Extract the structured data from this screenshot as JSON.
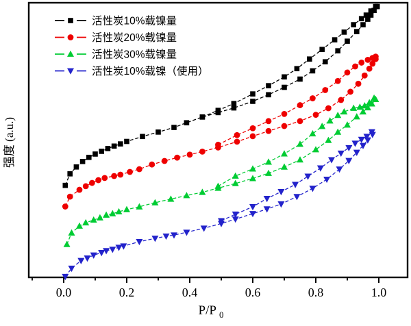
{
  "figure": {
    "background": "#ffffff",
    "frame_color": "#000000"
  },
  "axes": {
    "x": {
      "label_base": "P/P",
      "label_sub": "0",
      "major_ticks": [
        {
          "value": 0.0,
          "label": "0.0"
        },
        {
          "value": 0.2,
          "label": "0.2"
        },
        {
          "value": 0.4,
          "label": "0.4"
        },
        {
          "value": 0.6,
          "label": "0.6"
        },
        {
          "value": 0.8,
          "label": "0.8"
        },
        {
          "value": 1.0,
          "label": "1.0"
        }
      ],
      "minor_ticks": [
        -0.1,
        0.1,
        0.3,
        0.5,
        0.7,
        0.9
      ]
    },
    "y": {
      "label": "强度 (a.u.)",
      "tick_labels": []
    }
  },
  "legend": {
    "position": "top-left-inside",
    "items": [
      {
        "label": "活性炭10%载镍量",
        "color": "#000000",
        "marker": "square"
      },
      {
        "label": "活性炭20%载镍量",
        "color": "#ee0000",
        "marker": "circle"
      },
      {
        "label": "活性炭30%载镍量",
        "color": "#00cc33",
        "marker": "triangle-up"
      },
      {
        "label": "活性炭10%载镍（使用）",
        "color": "#2323cb",
        "marker": "triangle-down"
      }
    ]
  },
  "chart_data": {
    "type": "line",
    "title": "",
    "xlabel": "P/P0",
    "ylabel": "强度 (a.u.)",
    "x_range": [
      -0.11,
      1.09
    ],
    "ylim_au": [
      0,
      100
    ],
    "grid": false,
    "legend_position": "top-left-inside",
    "line_style": "dashed",
    "series": [
      {
        "name": "活性炭10%载镍量",
        "color": "#000000",
        "marker": "square",
        "adsorption": [
          [
            0.005,
            33.5
          ],
          [
            0.02,
            37.7
          ],
          [
            0.04,
            40.2
          ],
          [
            0.06,
            42.2
          ],
          [
            0.08,
            43.7
          ],
          [
            0.1,
            44.9
          ],
          [
            0.12,
            45.9
          ],
          [
            0.14,
            46.9
          ],
          [
            0.16,
            47.8
          ],
          [
            0.18,
            48.6
          ],
          [
            0.2,
            49.5
          ],
          [
            0.25,
            51.3
          ],
          [
            0.3,
            52.9
          ],
          [
            0.35,
            54.6
          ],
          [
            0.39,
            56.3
          ],
          [
            0.44,
            58.4
          ],
          [
            0.49,
            60.0
          ],
          [
            0.54,
            61.7
          ],
          [
            0.6,
            64.1
          ],
          [
            0.65,
            66.5
          ],
          [
            0.7,
            69.2
          ],
          [
            0.75,
            72.2
          ],
          [
            0.79,
            75.2
          ],
          [
            0.83,
            78.5
          ],
          [
            0.87,
            82.5
          ],
          [
            0.9,
            86.0
          ],
          [
            0.93,
            89.5
          ],
          [
            0.95,
            92.0
          ],
          [
            0.965,
            94.0
          ],
          [
            0.975,
            95.5
          ],
          [
            0.985,
            97.2
          ],
          [
            0.995,
            98.6
          ]
        ],
        "desorption": [
          [
            0.44,
            58.4
          ],
          [
            0.49,
            60.8
          ],
          [
            0.54,
            63.3
          ],
          [
            0.6,
            66.8
          ],
          [
            0.65,
            69.8
          ],
          [
            0.7,
            73.0
          ],
          [
            0.74,
            76.0
          ],
          [
            0.78,
            79.5
          ],
          [
            0.82,
            83.0
          ],
          [
            0.86,
            86.5
          ],
          [
            0.89,
            89.3
          ],
          [
            0.92,
            92.0
          ],
          [
            0.945,
            94.2
          ],
          [
            0.96,
            95.5
          ],
          [
            0.975,
            97.0
          ],
          [
            0.99,
            98.6
          ]
        ]
      },
      {
        "name": "活性炭20%载镍量",
        "color": "#ee0000",
        "marker": "circle",
        "adsorption": [
          [
            0.005,
            25.8
          ],
          [
            0.02,
            29.4
          ],
          [
            0.05,
            31.9
          ],
          [
            0.07,
            33.2
          ],
          [
            0.09,
            34.4
          ],
          [
            0.11,
            35.4
          ],
          [
            0.13,
            36.2
          ],
          [
            0.16,
            36.9
          ],
          [
            0.18,
            37.4
          ],
          [
            0.21,
            38.4
          ],
          [
            0.24,
            39.4
          ],
          [
            0.28,
            41.1
          ],
          [
            0.32,
            42.4
          ],
          [
            0.36,
            43.6
          ],
          [
            0.4,
            44.7
          ],
          [
            0.44,
            45.8
          ],
          [
            0.49,
            47.3
          ],
          [
            0.55,
            49.4
          ],
          [
            0.6,
            51.4
          ],
          [
            0.65,
            53.3
          ],
          [
            0.7,
            55.1
          ],
          [
            0.75,
            56.9
          ],
          [
            0.8,
            59.2
          ],
          [
            0.84,
            61.6
          ],
          [
            0.88,
            64.6
          ],
          [
            0.91,
            67.6
          ],
          [
            0.935,
            70.5
          ],
          [
            0.955,
            73.5
          ],
          [
            0.97,
            76.0
          ],
          [
            0.98,
            77.8
          ],
          [
            0.99,
            79.5
          ]
        ],
        "desorption": [
          [
            0.49,
            48.3
          ],
          [
            0.55,
            51.8
          ],
          [
            0.6,
            54.3
          ],
          [
            0.65,
            56.9
          ],
          [
            0.7,
            59.5
          ],
          [
            0.75,
            62.7
          ],
          [
            0.79,
            65.2
          ],
          [
            0.83,
            68.2
          ],
          [
            0.87,
            71.5
          ],
          [
            0.9,
            74.6
          ],
          [
            0.925,
            76.8
          ],
          [
            0.945,
            78.2
          ],
          [
            0.965,
            79.2
          ],
          [
            0.98,
            79.9
          ],
          [
            0.99,
            80.4
          ]
        ]
      },
      {
        "name": "活性炭30%载镍量",
        "color": "#00cc33",
        "marker": "triangle-up",
        "adsorption": [
          [
            0.01,
            12.0
          ],
          [
            0.025,
            16.2
          ],
          [
            0.05,
            18.7
          ],
          [
            0.07,
            19.9
          ],
          [
            0.095,
            20.9
          ],
          [
            0.115,
            21.7
          ],
          [
            0.135,
            22.7
          ],
          [
            0.155,
            23.2
          ],
          [
            0.175,
            23.9
          ],
          [
            0.2,
            24.7
          ],
          [
            0.24,
            25.7
          ],
          [
            0.29,
            27.2
          ],
          [
            0.34,
            28.5
          ],
          [
            0.39,
            29.8
          ],
          [
            0.44,
            31.0
          ],
          [
            0.49,
            32.5
          ],
          [
            0.545,
            34.2
          ],
          [
            0.6,
            36.0
          ],
          [
            0.65,
            37.9
          ],
          [
            0.7,
            40.2
          ],
          [
            0.75,
            42.8
          ],
          [
            0.8,
            46.5
          ],
          [
            0.84,
            49.9
          ],
          [
            0.87,
            52.9
          ],
          [
            0.9,
            55.5
          ],
          [
            0.93,
            58.5
          ],
          [
            0.95,
            60.3
          ],
          [
            0.965,
            61.8
          ],
          [
            0.978,
            63.2
          ],
          [
            0.99,
            64.8
          ]
        ],
        "desorption": [
          [
            0.49,
            33.2
          ],
          [
            0.545,
            36.9
          ],
          [
            0.6,
            39.5
          ],
          [
            0.65,
            42.0
          ],
          [
            0.7,
            45.0
          ],
          [
            0.75,
            48.5
          ],
          [
            0.79,
            52.3
          ],
          [
            0.82,
            55.0
          ],
          [
            0.845,
            57.0
          ],
          [
            0.87,
            59.0
          ],
          [
            0.89,
            60.3
          ],
          [
            0.92,
            61.6
          ],
          [
            0.94,
            62.0
          ],
          [
            0.955,
            62.5
          ],
          [
            0.97,
            63.6
          ],
          [
            0.985,
            65.3
          ]
        ]
      },
      {
        "name": "活性炭10%载镍（使用）",
        "color": "#2323cb",
        "marker": "triangle-down",
        "adsorption": [
          [
            0.005,
            0.3
          ],
          [
            0.025,
            3.3
          ],
          [
            0.055,
            6.1
          ],
          [
            0.075,
            7.0
          ],
          [
            0.095,
            8.1
          ],
          [
            0.12,
            9.0
          ],
          [
            0.135,
            9.7
          ],
          [
            0.155,
            10.2
          ],
          [
            0.175,
            10.9
          ],
          [
            0.19,
            11.4
          ],
          [
            0.24,
            13.0
          ],
          [
            0.29,
            14.2
          ],
          [
            0.325,
            15.0
          ],
          [
            0.35,
            15.4
          ],
          [
            0.39,
            16.4
          ],
          [
            0.445,
            17.9
          ],
          [
            0.5,
            19.6
          ],
          [
            0.545,
            21.2
          ],
          [
            0.6,
            23.2
          ],
          [
            0.645,
            24.9
          ],
          [
            0.69,
            26.7
          ],
          [
            0.74,
            29.4
          ],
          [
            0.79,
            32.4
          ],
          [
            0.835,
            35.7
          ],
          [
            0.875,
            39.4
          ],
          [
            0.905,
            42.5
          ],
          [
            0.93,
            45.5
          ],
          [
            0.95,
            48.0
          ],
          [
            0.965,
            50.0
          ],
          [
            0.98,
            52.0
          ]
        ],
        "desorption": [
          [
            0.5,
            20.6
          ],
          [
            0.545,
            23.0
          ],
          [
            0.6,
            25.7
          ],
          [
            0.645,
            28.7
          ],
          [
            0.69,
            31.2
          ],
          [
            0.735,
            33.8
          ],
          [
            0.775,
            36.8
          ],
          [
            0.815,
            39.8
          ],
          [
            0.85,
            42.8
          ],
          [
            0.88,
            45.2
          ],
          [
            0.905,
            47.2
          ],
          [
            0.925,
            48.8
          ],
          [
            0.945,
            50.2
          ],
          [
            0.962,
            51.3
          ],
          [
            0.978,
            53.0
          ]
        ]
      }
    ]
  }
}
